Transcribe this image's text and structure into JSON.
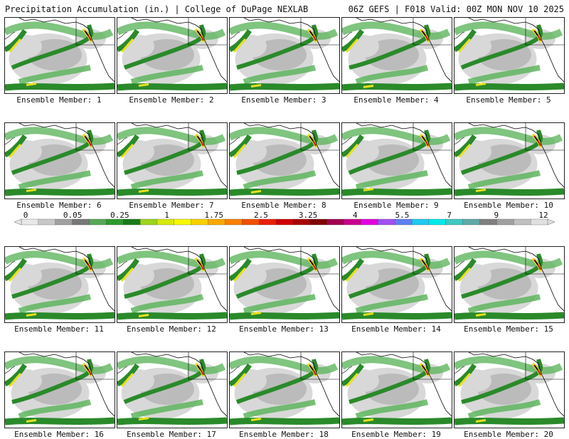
{
  "header": {
    "title": "Precipitation Accumulation (in.) | College of DuPage NEXLAB",
    "run_info": "06Z GEFS | F018 Valid: 00Z MON NOV 10 2025"
  },
  "panels": [
    {
      "label": "Ensemble Member: 1"
    },
    {
      "label": "Ensemble Member: 2"
    },
    {
      "label": "Ensemble Member: 3"
    },
    {
      "label": "Ensemble Member: 4"
    },
    {
      "label": "Ensemble Member: 5"
    },
    {
      "label": "Ensemble Member: 6"
    },
    {
      "label": "Ensemble Member: 7"
    },
    {
      "label": "Ensemble Member: 8"
    },
    {
      "label": "Ensemble Member: 9"
    },
    {
      "label": "Ensemble Member: 10"
    },
    {
      "label": "Ensemble Member: 11"
    },
    {
      "label": "Ensemble Member: 12"
    },
    {
      "label": "Ensemble Member: 13"
    },
    {
      "label": "Ensemble Member: 14"
    },
    {
      "label": "Ensemble Member: 15"
    },
    {
      "label": "Ensemble Member: 16"
    },
    {
      "label": "Ensemble Member: 17"
    },
    {
      "label": "Ensemble Member: 18"
    },
    {
      "label": "Ensemble Member: 19"
    },
    {
      "label": "Ensemble Member: 20"
    }
  ],
  "colorbar": {
    "tick_labels": [
      "0",
      "0.05",
      "0.25",
      "1",
      "1.75",
      "2.5",
      "3.25",
      "4",
      "5.5",
      "7",
      "9",
      "12"
    ],
    "colors": [
      "#e8e8e8",
      "#c8c8c8",
      "#a0a0a0",
      "#787878",
      "#58a858",
      "#2e9a2e",
      "#1a7a1a",
      "#9cd41c",
      "#d8e810",
      "#f8f800",
      "#f8d000",
      "#f8a800",
      "#f88000",
      "#f05000",
      "#e82000",
      "#d00000",
      "#a80000",
      "#800000",
      "#a00050",
      "#c8008c",
      "#e000e0",
      "#a050f0",
      "#6080f0",
      "#20c8f0",
      "#00e8e8",
      "#40c8c0",
      "#60a8a8",
      "#808080",
      "#a0a0a0",
      "#c0c0c0",
      "#e0e0e0"
    ]
  },
  "map_colors": {
    "ocean": "#ffffff",
    "trace_light": "#d8d8d8",
    "trace_dark": "#a8a8a8",
    "green_light": "#5fb55f",
    "green_dark": "#2a8a2a",
    "yellow": "#e8e020",
    "orange": "#f0a020",
    "red": "#c01818",
    "black": "#000000"
  }
}
